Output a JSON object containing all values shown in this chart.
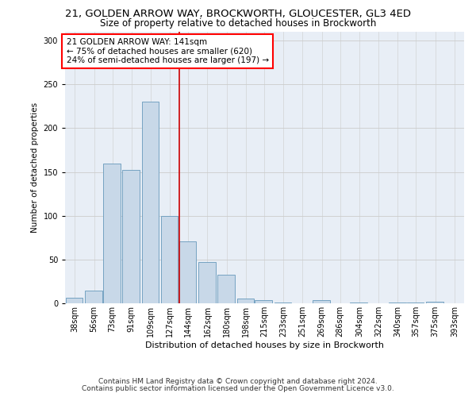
{
  "title1": "21, GOLDEN ARROW WAY, BROCKWORTH, GLOUCESTER, GL3 4ED",
  "title2": "Size of property relative to detached houses in Brockworth",
  "xlabel": "Distribution of detached houses by size in Brockworth",
  "ylabel": "Number of detached properties",
  "annotation_line1": "21 GOLDEN ARROW WAY: 141sqm",
  "annotation_line2": "← 75% of detached houses are smaller (620)",
  "annotation_line3": "24% of semi-detached houses are larger (197) →",
  "footnote1": "Contains HM Land Registry data © Crown copyright and database right 2024.",
  "footnote2": "Contains public sector information licensed under the Open Government Licence v3.0.",
  "bar_color": "#c8d8e8",
  "bar_edge_color": "#6699bb",
  "grid_color": "#cccccc",
  "background_color": "#e8eef6",
  "redline_color": "#cc0000",
  "bins": [
    38,
    56,
    73,
    91,
    109,
    127,
    144,
    162,
    180,
    198,
    215,
    233,
    251,
    269,
    286,
    304,
    322,
    340,
    357,
    375,
    393
  ],
  "values": [
    7,
    15,
    160,
    152,
    230,
    100,
    71,
    47,
    33,
    6,
    4,
    1,
    0,
    4,
    0,
    1,
    0,
    1,
    1,
    2
  ],
  "bin_width": 17,
  "redline_value": 141,
  "ylim": [
    0,
    310
  ],
  "yticks": [
    0,
    50,
    100,
    150,
    200,
    250,
    300
  ],
  "title1_fontsize": 9.5,
  "title2_fontsize": 8.5,
  "xlabel_fontsize": 8,
  "ylabel_fontsize": 7.5,
  "tick_fontsize": 7,
  "annotation_fontsize": 7.5,
  "footnote_fontsize": 6.5
}
